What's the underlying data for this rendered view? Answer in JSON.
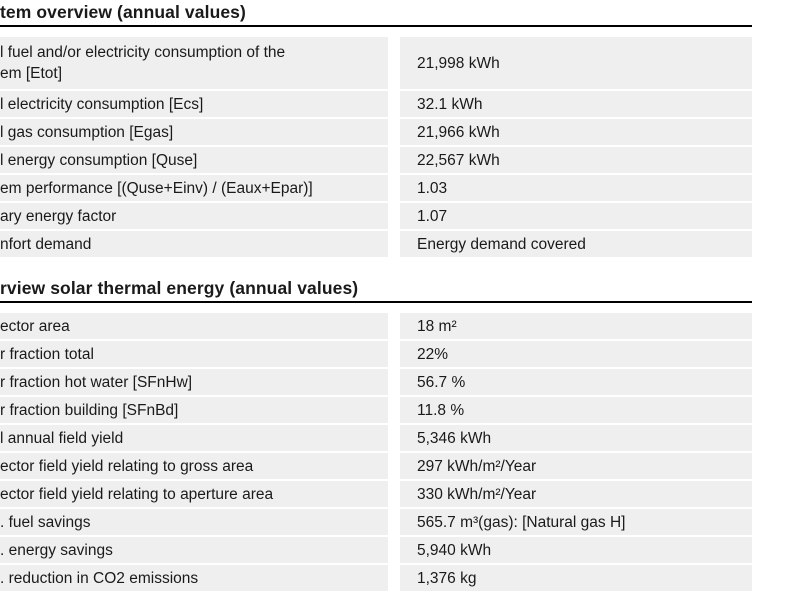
{
  "colors": {
    "page_bg": "#ffffff",
    "row_bg": "#efefef",
    "text": "#1a1a1a",
    "rule": "#000000"
  },
  "report": {
    "sections": [
      {
        "title": "tem overview (annual values)",
        "rows": [
          {
            "label": "l fuel and/or electricity consumption of the\nem [Etot]",
            "value": "21,998 kWh"
          },
          {
            "label": "l electricity consumption [Ecs]",
            "value": "32.1 kWh"
          },
          {
            "label": "l gas consumption [Egas]",
            "value": "21,966 kWh"
          },
          {
            "label": "l energy consumption [Quse]",
            "value": "22,567 kWh"
          },
          {
            "label": "em performance [(Quse+Einv) / (Eaux+Epar)]",
            "value": "1.03"
          },
          {
            "label": "ary energy factor",
            "value": "1.07"
          },
          {
            "label": "nfort demand",
            "value": "Energy demand covered"
          }
        ]
      },
      {
        "title": "rview solar thermal energy (annual values)",
        "rows": [
          {
            "label": "ector area",
            "value": "18 m²"
          },
          {
            "label": "r fraction total",
            "value": "22%"
          },
          {
            "label": "r fraction hot water [SFnHw]",
            "value": "56.7 %"
          },
          {
            "label": "r fraction building [SFnBd]",
            "value": "11.8 %"
          },
          {
            "label": "l annual field yield",
            "value": "5,346 kWh"
          },
          {
            "label": "ector field yield relating to gross area",
            "value": "297 kWh/m²/Year"
          },
          {
            "label": "ector field yield relating to aperture area",
            "value": "330 kWh/m²/Year"
          },
          {
            "label": ". fuel savings",
            "value": "565.7 m³(gas): [Natural gas H]"
          },
          {
            "label": ". energy savings",
            "value": "5,940 kWh"
          },
          {
            "label": ". reduction in CO2 emissions",
            "value": "1,376 kg"
          }
        ]
      }
    ]
  }
}
